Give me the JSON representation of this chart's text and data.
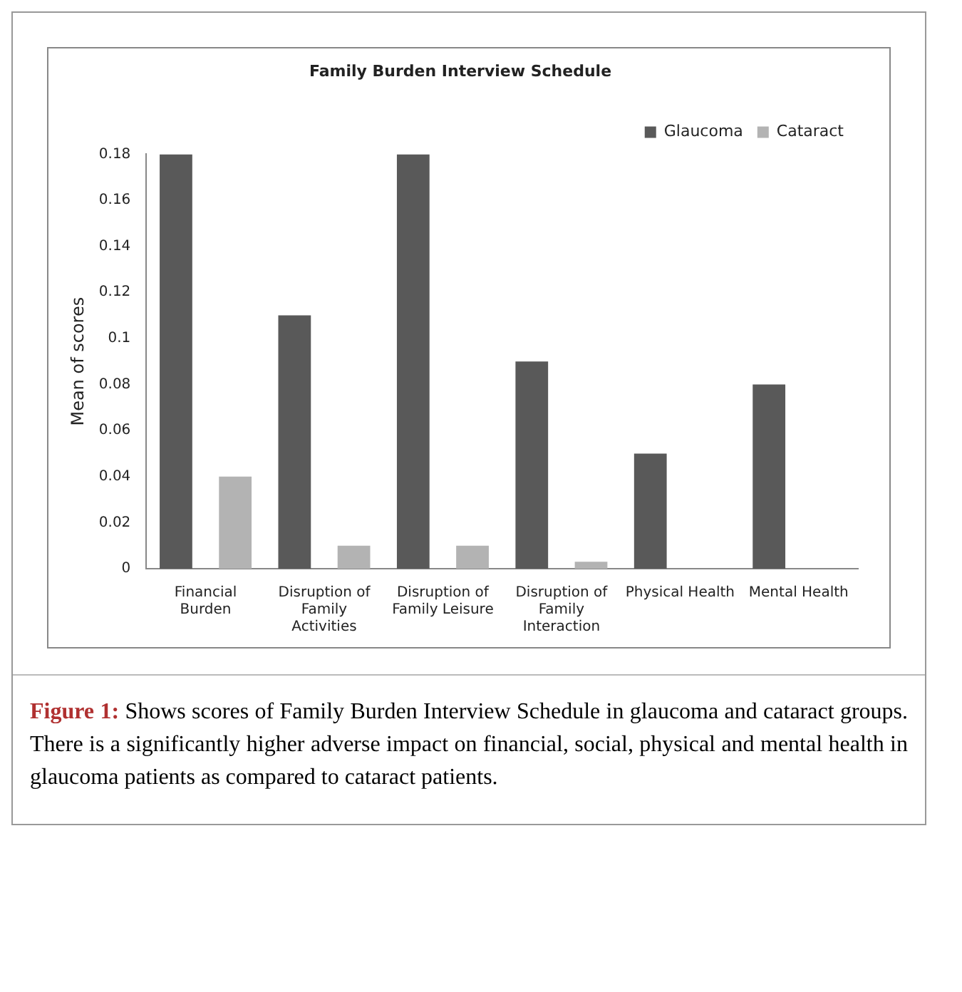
{
  "chart_data": {
    "type": "bar",
    "title": "Family Burden Interview Schedule",
    "ylabel": "Mean of scores",
    "categories": [
      "Financial Burden",
      "Disruption of Family Activities",
      "Disruption of Family Leisure",
      "Disruption of Family Interaction",
      "Physical Health",
      "Mental Health"
    ],
    "series": [
      {
        "name": "Glaucoma",
        "color": "#595959",
        "values": [
          0.18,
          0.11,
          0.18,
          0.09,
          0.05,
          0.08
        ]
      },
      {
        "name": "Cataract",
        "color": "#b3b3b3",
        "values": [
          0.04,
          0.01,
          0.01,
          0.003,
          0,
          0
        ]
      }
    ],
    "ylim": [
      0,
      0.18
    ],
    "yticks": [
      0,
      0.02,
      0.04,
      0.06,
      0.08,
      0.1,
      0.12,
      0.14,
      0.16,
      0.18
    ],
    "grid": false,
    "legend": "top right",
    "annotations": [
      "Figure 1: Shows scores of Family Burden Interview Schedule in glaucoma and cataract groups. There is a significantly higher adverse impact on financial, social, physical and mental health in glaucoma patients as compared to cataract patients."
    ]
  }
}
